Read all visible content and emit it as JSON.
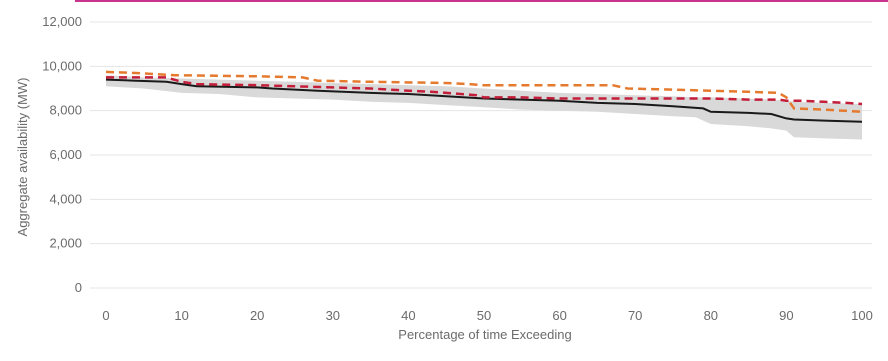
{
  "accent_color": "#c8338e",
  "chart_data": {
    "type": "line",
    "title": "",
    "xlabel": "Percentage of time Exceeding",
    "ylabel": "Aggregate availability (MW)",
    "xlim": [
      0,
      100
    ],
    "ylim": [
      0,
      12000
    ],
    "x_ticks": [
      0,
      10,
      20,
      30,
      40,
      50,
      60,
      70,
      80,
      90,
      100
    ],
    "y_ticks": [
      0,
      2000,
      4000,
      6000,
      8000,
      10000,
      12000
    ],
    "x_tick_labels": [
      "0",
      "10",
      "20",
      "30",
      "40",
      "50",
      "60",
      "70",
      "80",
      "90",
      "100"
    ],
    "y_tick_labels": [
      "0",
      "2,000",
      "4,000",
      "6,000",
      "8,000",
      "10,000",
      "12,000"
    ],
    "grid": "horizontal",
    "band": {
      "color": "#d9d9d9",
      "x": [
        0,
        5,
        10,
        15,
        20,
        25,
        30,
        35,
        40,
        45,
        50,
        55,
        60,
        65,
        70,
        75,
        78,
        80,
        85,
        88,
        90,
        91,
        95,
        100
      ],
      "upper": [
        9600,
        9500,
        9450,
        9400,
        9350,
        9300,
        9250,
        9200,
        9150,
        9100,
        9000,
        8900,
        8800,
        8750,
        8700,
        8650,
        8600,
        8600,
        8550,
        8500,
        8450,
        8400,
        8350,
        8300
      ],
      "lower": [
        9100,
        9000,
        8800,
        8750,
        8600,
        8550,
        8500,
        8400,
        8350,
        8250,
        8150,
        8050,
        8000,
        7950,
        7850,
        7750,
        7700,
        7400,
        7300,
        7200,
        7100,
        6800,
        6750,
        6700
      ]
    },
    "series": [
      {
        "color": "#1a1a1a",
        "dash": "solid",
        "x": [
          0,
          4,
          8,
          10,
          12,
          20,
          22,
          28,
          35,
          40,
          45,
          50,
          55,
          60,
          65,
          70,
          75,
          79,
          80,
          85,
          88,
          90,
          91,
          95,
          100
        ],
        "y": [
          9400,
          9350,
          9300,
          9200,
          9100,
          9050,
          9000,
          8900,
          8800,
          8750,
          8650,
          8550,
          8500,
          8450,
          8350,
          8300,
          8200,
          8100,
          7950,
          7900,
          7850,
          7650,
          7600,
          7550,
          7500
        ]
      },
      {
        "color": "#e57a2e",
        "dash": "dashed",
        "x": [
          0,
          4,
          9,
          20,
          26,
          28,
          35,
          45,
          48,
          50,
          55,
          60,
          67,
          69,
          75,
          80,
          85,
          89,
          90,
          91,
          95,
          100
        ],
        "y": [
          9750,
          9700,
          9600,
          9550,
          9500,
          9350,
          9300,
          9250,
          9200,
          9150,
          9150,
          9150,
          9150,
          9000,
          8950,
          8900,
          8850,
          8800,
          8600,
          8100,
          8050,
          7950
        ]
      },
      {
        "color": "#c41e3a",
        "dash": "dashed",
        "x": [
          0,
          8,
          10,
          12,
          20,
          25,
          30,
          35,
          40,
          43,
          45,
          49,
          50,
          55,
          60,
          65,
          70,
          75,
          80,
          85,
          89,
          90,
          92,
          95,
          98,
          100
        ],
        "y": [
          9500,
          9500,
          9300,
          9200,
          9150,
          9100,
          9050,
          9000,
          8900,
          8850,
          8800,
          8700,
          8600,
          8600,
          8550,
          8550,
          8550,
          8550,
          8550,
          8500,
          8500,
          8450,
          8450,
          8400,
          8350,
          8300
        ]
      }
    ]
  }
}
